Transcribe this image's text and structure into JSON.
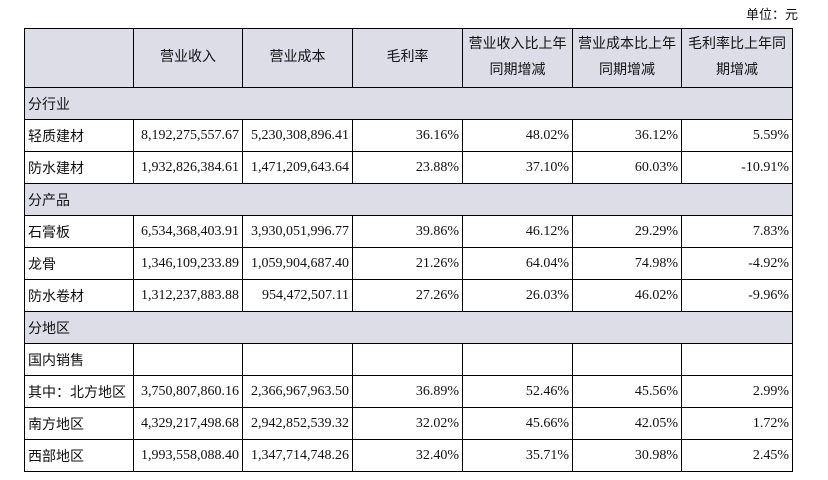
{
  "unit": "单位：元",
  "table": {
    "header": [
      "营业收入",
      "营业成本",
      "毛利率",
      "营业收入比上年同期增减",
      "营业成本比上年同期增减",
      "毛利率比上年同期增减"
    ],
    "rows": [
      {
        "section": "分行业"
      },
      {
        "label": "轻质建材",
        "values": [
          "8,192,275,557.67",
          "5,230,308,896.41",
          "36.16%",
          "48.02%",
          "36.12%",
          "5.59%"
        ]
      },
      {
        "label": "防水建材",
        "values": [
          "1,932,826,384.61",
          "1,471,209,643.64",
          "23.88%",
          "37.10%",
          "60.03%",
          "-10.91%"
        ]
      },
      {
        "section": "分产品"
      },
      {
        "label": "石膏板",
        "values": [
          "6,534,368,403.91",
          "3,930,051,996.77",
          "39.86%",
          "46.12%",
          "29.29%",
          "7.83%"
        ]
      },
      {
        "label": "龙骨",
        "values": [
          "1,346,109,233.89",
          "1,059,904,687.40",
          "21.26%",
          "64.04%",
          "74.98%",
          "-4.92%"
        ]
      },
      {
        "label": "防水卷材",
        "values": [
          "1,312,237,883.88",
          "954,472,507.11",
          "27.26%",
          "26.03%",
          "46.02%",
          "-9.96%"
        ]
      },
      {
        "section": "分地区"
      },
      {
        "label": "国内销售"
      },
      {
        "label": "其中：北方地区",
        "values": [
          "3,750,807,860.16",
          "2,366,967,963.50",
          "36.89%",
          "52.46%",
          "45.56%",
          "2.99%"
        ]
      },
      {
        "label": "南方地区",
        "values": [
          "4,329,217,498.68",
          "2,942,852,539.32",
          "32.02%",
          "45.66%",
          "42.05%",
          "1.72%"
        ]
      },
      {
        "label": "西部地区",
        "values": [
          "1,993,558,088.40",
          "1,347,714,748.26",
          "32.40%",
          "35.71%",
          "30.98%",
          "2.45%"
        ]
      }
    ]
  }
}
